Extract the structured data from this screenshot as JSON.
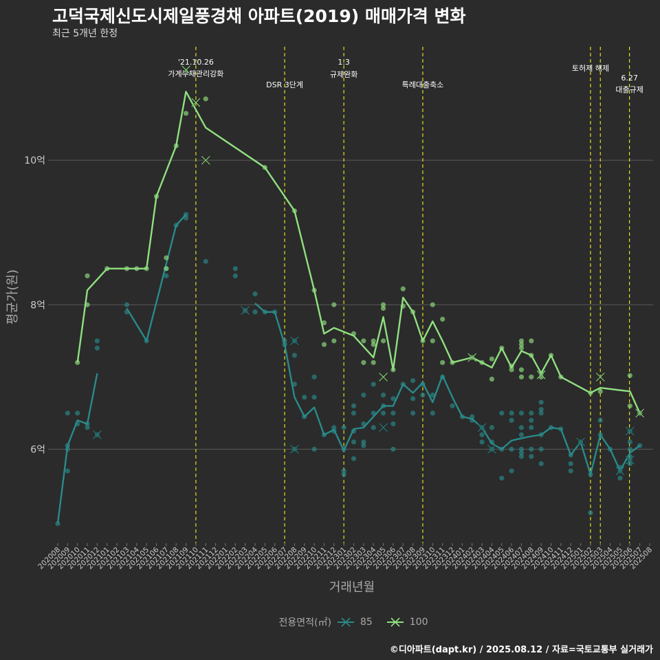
{
  "title": "고덕국제신도시제일풍경채 아파트(2019) 매매가격 변화",
  "subtitle": "최근 5개년 한정",
  "caption": "©디아파트(dapt.kr) / 2025.08.12 / 자료=국토교통부 실거래가",
  "chart_data": {
    "type": "line",
    "xlabel": "거래년월",
    "ylabel": "평균가(원)",
    "ylim": [
      4.7,
      11.6
    ],
    "y_ticks": [
      6,
      8,
      10
    ],
    "y_tick_labels": [
      "6억",
      "8억",
      "10억"
    ],
    "categories": [
      "202008",
      "202009",
      "202010",
      "202011",
      "202012",
      "202101",
      "202102",
      "202103",
      "202104",
      "202105",
      "202106",
      "202107",
      "202108",
      "202109",
      "202110",
      "202111",
      "202112",
      "202201",
      "202202",
      "202203",
      "202204",
      "202205",
      "202206",
      "202207",
      "202208",
      "202209",
      "202210",
      "202211",
      "202212",
      "202301",
      "202302",
      "202303",
      "202304",
      "202305",
      "202306",
      "202307",
      "202308",
      "202309",
      "202310",
      "202311",
      "202312",
      "202401",
      "202402",
      "202403",
      "202404",
      "202405",
      "202406",
      "202407",
      "202408",
      "202409",
      "202410",
      "202411",
      "202412",
      "202501",
      "202502",
      "202503",
      "202504",
      "202505",
      "202506",
      "202507",
      "202508"
    ],
    "legend_title": "전용면적(㎡)",
    "series": [
      {
        "name": "85",
        "color": "#2a8a8a",
        "line": [
          [
            0,
            4.97
          ],
          [
            1,
            6.05
          ],
          [
            2,
            6.4
          ],
          [
            3,
            6.35
          ],
          [
            4,
            7.05
          ],
          null,
          [
            7,
            7.95
          ],
          [
            9,
            7.5
          ],
          [
            12,
            9.1
          ],
          [
            13,
            9.25
          ],
          null,
          [
            20,
            8.02
          ],
          [
            21,
            7.9
          ],
          [
            22,
            7.9
          ],
          [
            23,
            7.45
          ],
          [
            24,
            6.72
          ],
          [
            25,
            6.45
          ],
          [
            26,
            6.58
          ],
          [
            27,
            6.2
          ],
          [
            28,
            6.27
          ],
          [
            29,
            5.98
          ],
          [
            30,
            6.28
          ],
          [
            31,
            6.3
          ],
          [
            32,
            6.45
          ],
          [
            33,
            6.6
          ],
          [
            34,
            6.6
          ],
          [
            35,
            6.9
          ],
          [
            36,
            6.78
          ],
          [
            37,
            6.92
          ],
          [
            38,
            6.65
          ],
          [
            39,
            7.02
          ],
          [
            40,
            6.72
          ],
          [
            41,
            6.45
          ],
          [
            42,
            6.42
          ],
          [
            43,
            6.3
          ],
          [
            44,
            6.08
          ],
          [
            45,
            6.0
          ],
          [
            46,
            6.12
          ],
          [
            47,
            6.15
          ],
          [
            48,
            6.18
          ],
          [
            49,
            6.2
          ],
          [
            50,
            6.3
          ],
          [
            51,
            6.28
          ],
          [
            52,
            5.92
          ],
          [
            53,
            6.1
          ],
          [
            54,
            5.65
          ],
          [
            55,
            6.2
          ],
          [
            56,
            6.0
          ],
          [
            57,
            5.7
          ],
          [
            58,
            5.95
          ],
          [
            59,
            6.05
          ]
        ],
        "points": [
          [
            0,
            4.97
          ],
          [
            1,
            6.5
          ],
          [
            1,
            5.7
          ],
          [
            1,
            6.05
          ],
          [
            1,
            6.0
          ],
          [
            2,
            6.5
          ],
          [
            2,
            6.35
          ],
          [
            3,
            6.3
          ],
          [
            3,
            6.35
          ],
          [
            4,
            7.5
          ],
          [
            4,
            7.4
          ],
          [
            4,
            6.2
          ],
          [
            7,
            8.0
          ],
          [
            7,
            7.9
          ],
          [
            9,
            7.5
          ],
          [
            11,
            8.5
          ],
          [
            11,
            8.4
          ],
          [
            12,
            9.1
          ],
          [
            13,
            9.25
          ],
          [
            13,
            9.2
          ],
          [
            15,
            8.6
          ],
          [
            18,
            8.5
          ],
          [
            18,
            8.4
          ],
          [
            19,
            7.92
          ],
          [
            20,
            8.15
          ],
          [
            20,
            7.9
          ],
          [
            21,
            7.9
          ],
          [
            22,
            7.9
          ],
          [
            23,
            7.45
          ],
          [
            23,
            7.5
          ],
          [
            24,
            7.5
          ],
          [
            24,
            6.9
          ],
          [
            24,
            7.3
          ],
          [
            24,
            6.0
          ],
          [
            25,
            6.72
          ],
          [
            25,
            6.45
          ],
          [
            26,
            7.0
          ],
          [
            26,
            6.72
          ],
          [
            26,
            6.0
          ],
          [
            27,
            6.2
          ],
          [
            28,
            6.3
          ],
          [
            28,
            6.25
          ],
          [
            29,
            6.3
          ],
          [
            29,
            6.0
          ],
          [
            29,
            5.65
          ],
          [
            29,
            5.7
          ],
          [
            30,
            6.5
          ],
          [
            30,
            6.25
          ],
          [
            30,
            6.6
          ],
          [
            30,
            5.87
          ],
          [
            30,
            6.1
          ],
          [
            31,
            6.75
          ],
          [
            31,
            6.35
          ],
          [
            31,
            6.1
          ],
          [
            31,
            6.05
          ],
          [
            32,
            6.9
          ],
          [
            32,
            6.5
          ],
          [
            32,
            6.3
          ],
          [
            33,
            6.75
          ],
          [
            33,
            6.6
          ],
          [
            33,
            6.5
          ],
          [
            34,
            6.7
          ],
          [
            34,
            6.5
          ],
          [
            34,
            6.35
          ],
          [
            34,
            6.0
          ],
          [
            35,
            6.9
          ],
          [
            36,
            6.95
          ],
          [
            36,
            6.7
          ],
          [
            36,
            6.5
          ],
          [
            37,
            6.9
          ],
          [
            37,
            6.75
          ],
          [
            38,
            6.75
          ],
          [
            38,
            6.5
          ],
          [
            39,
            7.0
          ],
          [
            40,
            6.6
          ],
          [
            41,
            6.45
          ],
          [
            42,
            6.4
          ],
          [
            42,
            6.45
          ],
          [
            43,
            6.3
          ],
          [
            43,
            6.2
          ],
          [
            43,
            6.1
          ],
          [
            44,
            6.3
          ],
          [
            44,
            6.0
          ],
          [
            44,
            6.1
          ],
          [
            45,
            6.5
          ],
          [
            45,
            6.0
          ],
          [
            45,
            5.6
          ],
          [
            46,
            6.5
          ],
          [
            46,
            6.4
          ],
          [
            46,
            6.0
          ],
          [
            46,
            5.7
          ],
          [
            47,
            6.5
          ],
          [
            47,
            6.3
          ],
          [
            47,
            6.2
          ],
          [
            47,
            6.0
          ],
          [
            47,
            5.95
          ],
          [
            47,
            5.9
          ],
          [
            48,
            6.5
          ],
          [
            48,
            6.4
          ],
          [
            48,
            6.3
          ],
          [
            48,
            6.0
          ],
          [
            48,
            5.9
          ],
          [
            49,
            6.65
          ],
          [
            49,
            6.55
          ],
          [
            49,
            6.5
          ],
          [
            49,
            6.2
          ],
          [
            49,
            6.0
          ],
          [
            49,
            5.8
          ],
          [
            50,
            6.3
          ],
          [
            51,
            6.28
          ],
          [
            52,
            5.92
          ],
          [
            52,
            5.8
          ],
          [
            52,
            5.7
          ],
          [
            53,
            6.1
          ],
          [
            54,
            5.12
          ],
          [
            54,
            5.65
          ],
          [
            55,
            6.2
          ],
          [
            55,
            6.4
          ],
          [
            56,
            6.0
          ],
          [
            57,
            5.75
          ],
          [
            57,
            5.6
          ],
          [
            57,
            5.7
          ],
          [
            58,
            6.25
          ],
          [
            58,
            6.1
          ],
          [
            58,
            6.0
          ],
          [
            58,
            5.9
          ],
          [
            58,
            5.85
          ],
          [
            58,
            5.8
          ],
          [
            59,
            6.05
          ]
        ],
        "x_marks": [
          [
            4,
            6.2
          ],
          [
            19,
            7.92
          ],
          [
            24,
            7.5
          ],
          [
            24,
            6.0
          ],
          [
            33,
            6.3
          ],
          [
            43,
            6.3
          ],
          [
            44,
            6.0
          ],
          [
            53,
            6.1
          ],
          [
            57,
            5.7
          ],
          [
            58,
            6.25
          ],
          [
            58,
            5.85
          ]
        ]
      },
      {
        "name": "100",
        "color": "#90e080",
        "line": [
          [
            2,
            7.2
          ],
          [
            3,
            8.2
          ],
          [
            5,
            8.5
          ],
          [
            9,
            8.5
          ],
          [
            10,
            9.5
          ],
          [
            12,
            10.2
          ],
          [
            13,
            10.95
          ],
          [
            15,
            10.45
          ],
          [
            21,
            9.9
          ],
          [
            24,
            9.3
          ],
          [
            26,
            8.2
          ],
          [
            27,
            7.6
          ],
          [
            28,
            7.68
          ],
          [
            30,
            7.57
          ],
          [
            32,
            7.27
          ],
          [
            33,
            7.83
          ],
          [
            34,
            7.1
          ],
          [
            35,
            8.1
          ],
          [
            36,
            7.9
          ],
          [
            37,
            7.5
          ],
          [
            38,
            7.77
          ],
          [
            39,
            7.5
          ],
          [
            40,
            7.2
          ],
          [
            42,
            7.27
          ],
          [
            44,
            7.13
          ],
          [
            45,
            7.4
          ],
          [
            46,
            7.13
          ],
          [
            47,
            7.36
          ],
          [
            48,
            7.3
          ],
          [
            49,
            7.05
          ],
          [
            50,
            7.3
          ],
          [
            51,
            7.0
          ],
          [
            54,
            6.78
          ],
          [
            55,
            6.85
          ],
          [
            58,
            6.8
          ],
          [
            59,
            6.5
          ]
        ],
        "points": [
          [
            2,
            7.2
          ],
          [
            3,
            8.4
          ],
          [
            3,
            8.0
          ],
          [
            5,
            8.5
          ],
          [
            7,
            8.5
          ],
          [
            8,
            8.5
          ],
          [
            9,
            8.5
          ],
          [
            10,
            9.5
          ],
          [
            11,
            8.65
          ],
          [
            11,
            8.5
          ],
          [
            12,
            10.2
          ],
          [
            13,
            10.65
          ],
          [
            15,
            10.85
          ],
          [
            21,
            9.9
          ],
          [
            24,
            9.3
          ],
          [
            26,
            8.2
          ],
          [
            27,
            7.75
          ],
          [
            27,
            7.45
          ],
          [
            28,
            8.0
          ],
          [
            28,
            7.5
          ],
          [
            30,
            7.6
          ],
          [
            31,
            7.5
          ],
          [
            31,
            7.2
          ],
          [
            32,
            7.5
          ],
          [
            32,
            7.45
          ],
          [
            32,
            7.2
          ],
          [
            33,
            8.0
          ],
          [
            33,
            7.95
          ],
          [
            33,
            7.5
          ],
          [
            34,
            7.1
          ],
          [
            35,
            8.22
          ],
          [
            35,
            7.98
          ],
          [
            36,
            7.9
          ],
          [
            37,
            7.5
          ],
          [
            38,
            8.0
          ],
          [
            38,
            7.5
          ],
          [
            39,
            7.8
          ],
          [
            39,
            7.2
          ],
          [
            40,
            7.2
          ],
          [
            42,
            7.27
          ],
          [
            43,
            7.2
          ],
          [
            44,
            7.25
          ],
          [
            44,
            6.97
          ],
          [
            45,
            7.4
          ],
          [
            46,
            7.15
          ],
          [
            46,
            7.1
          ],
          [
            47,
            7.5
          ],
          [
            47,
            7.45
          ],
          [
            47,
            7.4
          ],
          [
            47,
            7.1
          ],
          [
            47,
            7.0
          ],
          [
            48,
            7.5
          ],
          [
            48,
            7.3
          ],
          [
            48,
            7.0
          ],
          [
            49,
            7.05
          ],
          [
            49,
            7.0
          ],
          [
            50,
            7.3
          ],
          [
            51,
            7.0
          ],
          [
            54,
            6.78
          ],
          [
            55,
            6.8
          ],
          [
            58,
            7.02
          ],
          [
            58,
            6.6
          ],
          [
            59,
            6.5
          ]
        ],
        "x_marks": [
          [
            13,
            11.25
          ],
          [
            14,
            10.8
          ],
          [
            15,
            10.0
          ],
          [
            33,
            7.0
          ],
          [
            42,
            7.27
          ],
          [
            49,
            7.03
          ],
          [
            55,
            7.0
          ],
          [
            59,
            6.5
          ]
        ]
      }
    ],
    "annotations": [
      {
        "x": 14.0,
        "lines": [
          "'21.10.26",
          "가계부채관리강화"
        ]
      },
      {
        "x": 23.0,
        "lines": [
          "DSR 3단계"
        ]
      },
      {
        "x": 29.0,
        "lines": [
          "1.3",
          "규제완화"
        ]
      },
      {
        "x": 37.0,
        "lines": [
          "특례대출축소"
        ]
      },
      {
        "x": 54.0,
        "lines": [
          "토허제 해제"
        ]
      },
      {
        "x": 55.0,
        "lines": []
      },
      {
        "x": 57.95,
        "lines": [
          "6.27",
          "대출규제"
        ]
      }
    ]
  }
}
